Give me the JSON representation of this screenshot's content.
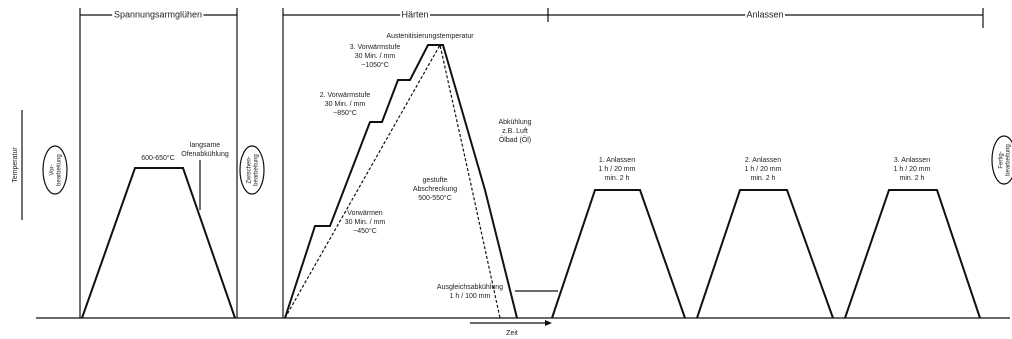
{
  "sections": {
    "stress_relief": "Spannungsarmglühen",
    "hardening": "Härten",
    "tempering": "Anlassen"
  },
  "axes": {
    "y": "Temperatur",
    "x": "Zeit"
  },
  "stages": [
    [
      "Vor-",
      "bearbeitung"
    ],
    [
      "Zwischen-",
      "bearbeitung"
    ],
    [
      "Fertig-",
      "bearbeitung"
    ]
  ],
  "annotations": [
    [
      "600-650°C"
    ],
    [
      "langsame",
      "Ofenabkühlung"
    ],
    [
      "Austenitisierungstemperatur"
    ],
    [
      "3. Vorwärmstufe",
      "30 Min. / mm",
      "~1050°C"
    ],
    [
      "2. Vorwärmstufe",
      "30 Min. / mm",
      "~850°C"
    ],
    [
      "Vorwärmen",
      "30 Min. / mm",
      "~450°C"
    ],
    [
      "Abkühlung",
      "z.B. Luft",
      "Ölbad (Öl)"
    ],
    [
      "gestufte",
      "Abschreckung",
      "500-550°C"
    ],
    [
      "Ausgleichsabkühlung",
      "1 h / 100 mm"
    ],
    [
      "1. Anlassen",
      "1 h / 20 mm",
      "min. 2 h"
    ],
    [
      "2. Anlassen",
      "1 h / 20 mm",
      "min. 2 h"
    ],
    [
      "3. Anlassen",
      "1 h / 20 mm",
      "min. 2 h"
    ]
  ]
}
